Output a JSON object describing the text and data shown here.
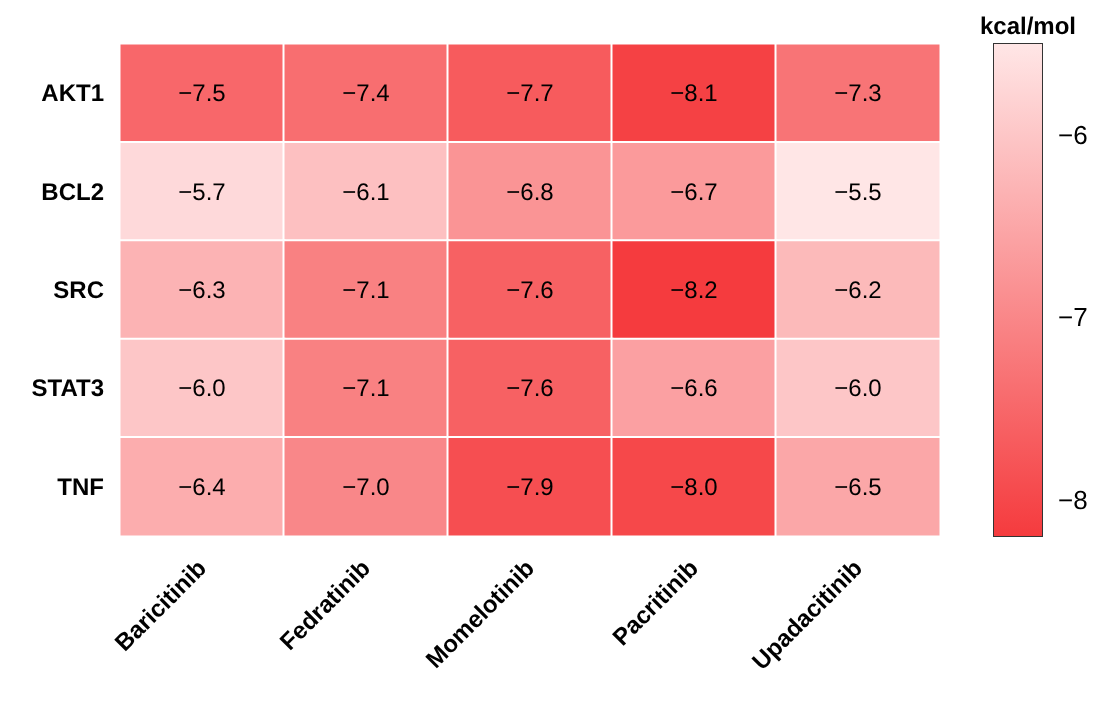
{
  "chart_data": {
    "type": "heatmap",
    "clabel": "kcal/mol",
    "categories": [
      "Baricitinib",
      "Fedratinib",
      "Momelotinib",
      "Pacritinib",
      "Upadacitinib"
    ],
    "y_categories": [
      "AKT1",
      "BCL2",
      "SRC",
      "STAT3",
      "TNF"
    ],
    "cells": [
      [
        -7.5,
        -7.4,
        -7.7,
        -8.1,
        -7.3
      ],
      [
        -5.7,
        -6.1,
        -6.8,
        -6.7,
        -5.5
      ],
      [
        -6.3,
        -7.1,
        -7.6,
        -8.2,
        -6.2
      ],
      [
        -6.0,
        -7.1,
        -7.6,
        -6.6,
        -6.0
      ],
      [
        -6.4,
        -7.0,
        -7.9,
        -8.0,
        -6.5
      ]
    ],
    "cell_labels": [
      [
        "−7.5",
        "−7.4",
        "−7.7",
        "−8.1",
        "−7.3"
      ],
      [
        "−5.7",
        "−6.1",
        "−6.8",
        "−6.7",
        "−5.5"
      ],
      [
        "−6.3",
        "−7.1",
        "−7.6",
        "−8.2",
        "−6.2"
      ],
      [
        "−6.0",
        "−7.1",
        "−7.6",
        "−6.6",
        "−6.0"
      ],
      [
        "−6.4",
        "−7.0",
        "−7.9",
        "−8.0",
        "−6.5"
      ]
    ],
    "clim": [
      -8.2,
      -5.5
    ],
    "cticks": [
      {
        "value": -8,
        "label": "−8"
      },
      {
        "value": -7,
        "label": "−7"
      },
      {
        "value": -6,
        "label": "−6"
      }
    ],
    "colors": [
      "#f53b3e",
      "#ffe6e6"
    ]
  }
}
